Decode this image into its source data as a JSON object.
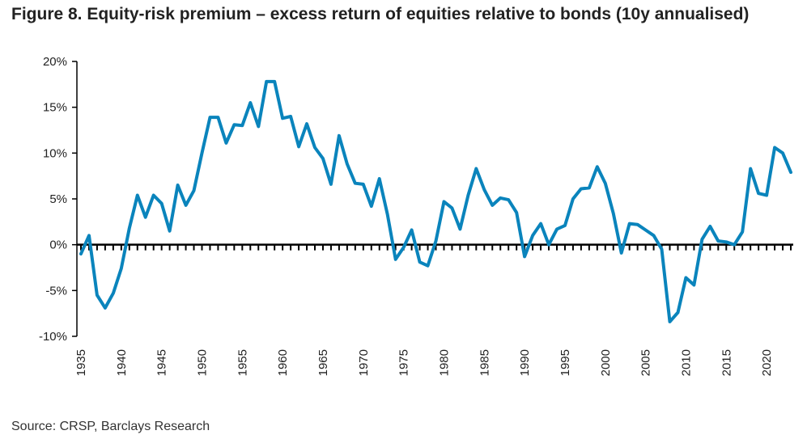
{
  "title": "Figure 8. Equity-risk premium – excess return of equities relative to bonds (10y annualised)",
  "source": "Source: CRSP, Barclays Research",
  "colors": {
    "line": "#0a84bc",
    "axis": "#000000",
    "text": "#222222"
  },
  "chart_data": {
    "type": "line",
    "title": "Figure 8. Equity-risk premium – excess return of equities relative to bonds (10y annualised)",
    "xlabel": "",
    "ylabel": "",
    "xlim": [
      1935,
      2023
    ],
    "ylim": [
      -10,
      20
    ],
    "y_ticks": [
      -10,
      -5,
      0,
      5,
      10,
      15,
      20
    ],
    "y_tick_labels": [
      "-10%",
      "-5%",
      "0%",
      "5%",
      "10%",
      "15%",
      "20%"
    ],
    "x_ticks": [
      1935,
      1940,
      1945,
      1950,
      1955,
      1960,
      1965,
      1970,
      1975,
      1980,
      1985,
      1990,
      1995,
      2000,
      2005,
      2010,
      2015,
      2020
    ],
    "x_tick_labels": [
      "1935",
      "1940",
      "1945",
      "1950",
      "1955",
      "1960",
      "1965",
      "1970",
      "1975",
      "1980",
      "1985",
      "1990",
      "1995",
      "2000",
      "2005",
      "2010",
      "2015",
      "2020"
    ],
    "grid": false,
    "series": [
      {
        "name": "Equity-risk premium (10y annualised)",
        "x": [
          1935,
          1936,
          1937,
          1938,
          1939,
          1940,
          1941,
          1942,
          1943,
          1944,
          1945,
          1946,
          1947,
          1948,
          1949,
          1950,
          1951,
          1952,
          1953,
          1954,
          1955,
          1956,
          1957,
          1958,
          1959,
          1960,
          1961,
          1962,
          1963,
          1964,
          1965,
          1966,
          1967,
          1968,
          1969,
          1970,
          1971,
          1972,
          1973,
          1974,
          1975,
          1976,
          1977,
          1978,
          1979,
          1980,
          1981,
          1982,
          1983,
          1984,
          1985,
          1986,
          1987,
          1988,
          1989,
          1990,
          1991,
          1992,
          1993,
          1994,
          1995,
          1996,
          1997,
          1998,
          1999,
          2000,
          2001,
          2002,
          2003,
          2004,
          2005,
          2006,
          2007,
          2008,
          2009,
          2010,
          2011,
          2012,
          2013,
          2014,
          2015,
          2016,
          2017,
          2018,
          2019,
          2020,
          2021,
          2022,
          2023
        ],
        "values": [
          -1.0,
          1.0,
          -5.5,
          -6.9,
          -5.3,
          -2.6,
          1.8,
          5.4,
          3.0,
          5.4,
          4.5,
          1.5,
          6.5,
          4.3,
          5.9,
          10.0,
          13.9,
          13.9,
          11.1,
          13.1,
          13.0,
          15.5,
          12.9,
          17.8,
          17.8,
          13.8,
          14.0,
          10.7,
          13.2,
          10.6,
          9.4,
          6.6,
          11.9,
          8.8,
          6.7,
          6.6,
          4.2,
          7.2,
          3.3,
          -1.6,
          -0.3,
          1.6,
          -1.9,
          -2.3,
          0.4,
          4.7,
          4.0,
          1.7,
          5.4,
          8.3,
          6.0,
          4.3,
          5.1,
          4.9,
          3.5,
          -1.3,
          1.0,
          2.3,
          0.0,
          1.7,
          2.1,
          5.0,
          6.1,
          6.2,
          8.5,
          6.7,
          3.4,
          -0.9,
          2.3,
          2.2,
          1.6,
          1.0,
          -0.5,
          -8.4,
          -7.4,
          -3.6,
          -4.4,
          0.6,
          2.0,
          0.4,
          0.3,
          0.0,
          1.4,
          8.3,
          5.6,
          5.4,
          10.6,
          10.0,
          7.9
        ]
      }
    ]
  }
}
